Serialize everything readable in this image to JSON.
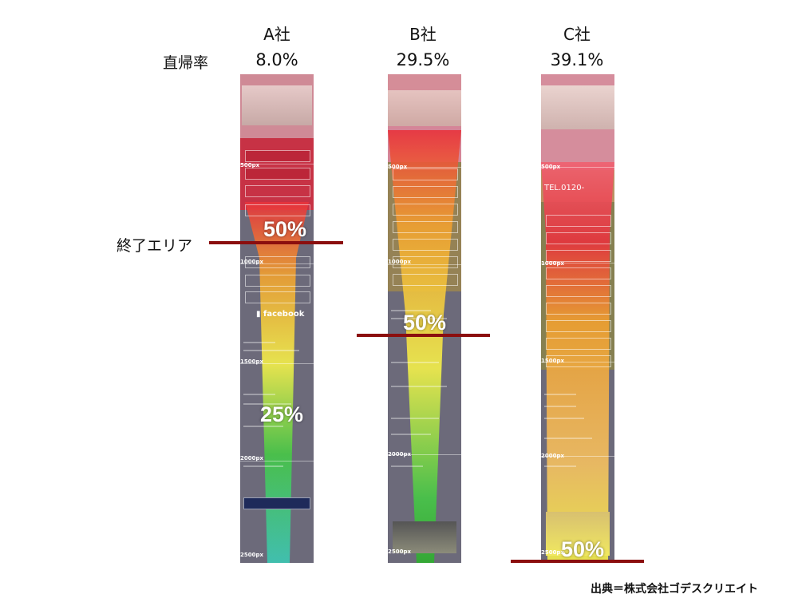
{
  "columns": [
    {
      "company": "A社",
      "rate": "8.0%",
      "label_50": "50%",
      "label_25": "25%",
      "facebook": "facebook"
    },
    {
      "company": "B社",
      "rate": "29.5%",
      "label_50": "50%"
    },
    {
      "company": "C社",
      "rate": "39.1%",
      "label_50": "50%",
      "tel": "TEL.0120-"
    }
  ],
  "row_label": "直帰率",
  "end_area_label": "終了エリア",
  "px_marks": [
    "500px",
    "1000px",
    "1500px",
    "2000px",
    "2500px"
  ],
  "source": "出典＝株式会社ゴデスクリエイト",
  "colors": {
    "red": "#e8323c",
    "orange": "#f0a030",
    "yellow": "#f4f04a",
    "green": "#46c846",
    "teal": "#3cc8b4",
    "gray": "#6c6a7a",
    "end_line": "#8b0e0e"
  }
}
